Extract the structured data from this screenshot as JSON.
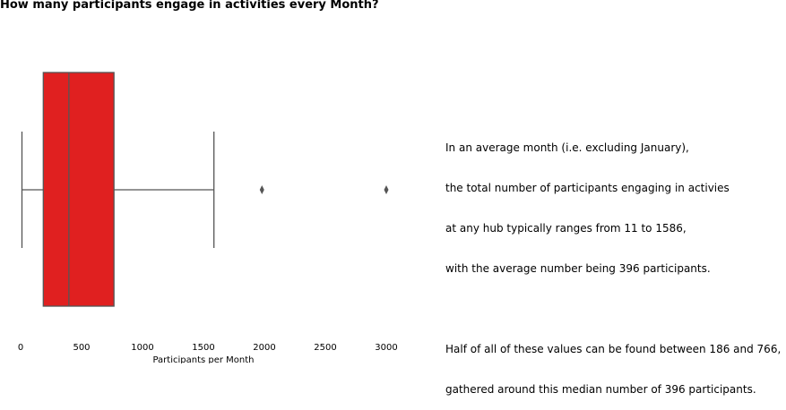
{
  "chart_data": {
    "type": "boxplot",
    "title": "How many participants engage in activities every Month?",
    "xlabel": "Participants per Month",
    "ylabel": "",
    "xlim": [
      -10,
      3100
    ],
    "xticks": [
      0,
      500,
      1000,
      1500,
      2000,
      2500,
      3000
    ],
    "grid": false,
    "legend": "none",
    "box": {
      "whisker_low": 11,
      "q1": 186,
      "median": 396,
      "q3": 766,
      "whisker_high": 1586,
      "outliers": [
        1980,
        3000
      ]
    },
    "box_color": "#e02020",
    "line_color": "#555555"
  },
  "annotation": {
    "paragraph1": [
      "In an average month (i.e. excluding January),",
      "the total number of participants engaging in activies",
      "at any hub typically ranges from 11 to 1586,",
      "with the average number being 396 participants."
    ],
    "paragraph2": [
      "Half of all of these values can be found between 186 and 766,",
      "gathered around this median number of 396 participants."
    ]
  }
}
